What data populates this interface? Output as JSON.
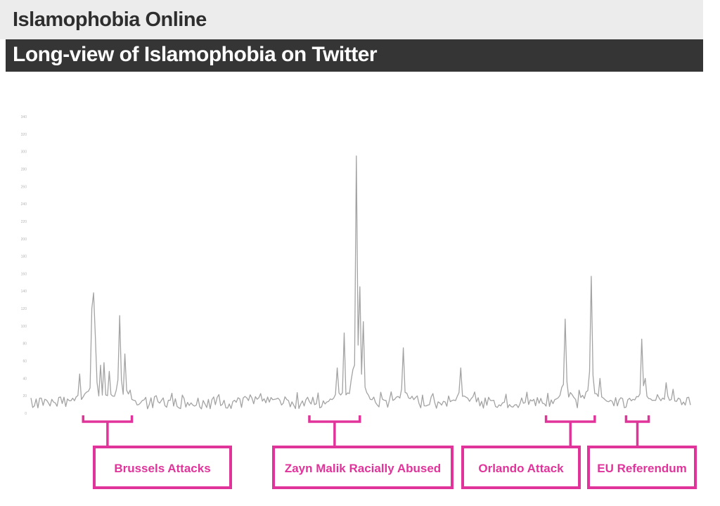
{
  "header": {
    "title": "Islamophobia Online",
    "subtitle": "Long-view of Islamophobia on Twitter"
  },
  "colors": {
    "series": "#a3a3a3",
    "annotation": "#e0349b",
    "banner_bg": "#353535",
    "title_text": "#2e2e2e"
  },
  "chart_data": {
    "type": "line",
    "title": "Long-view of Islamophobia on Twitter",
    "xlabel": "",
    "ylabel": "",
    "ylim": [
      0,
      340
    ],
    "yticks": [
      "0",
      "20",
      "40",
      "60",
      "80",
      "100",
      "120",
      "140",
      "160",
      "180",
      "200",
      "220",
      "240",
      "260",
      "280",
      "300",
      "320",
      "340"
    ],
    "grid": false,
    "x_count": 380,
    "baseline": 12,
    "peaks": [
      {
        "x": 35,
        "y": 120
      },
      {
        "x": 36,
        "y": 138
      },
      {
        "x": 37,
        "y": 88
      },
      {
        "x": 40,
        "y": 55
      },
      {
        "x": 42,
        "y": 58
      },
      {
        "x": 45,
        "y": 48
      },
      {
        "x": 51,
        "y": 112
      },
      {
        "x": 54,
        "y": 68
      },
      {
        "x": 28,
        "y": 45
      },
      {
        "x": 180,
        "y": 92
      },
      {
        "x": 176,
        "y": 52
      },
      {
        "x": 187,
        "y": 295
      },
      {
        "x": 189,
        "y": 145
      },
      {
        "x": 191,
        "y": 105
      },
      {
        "x": 214,
        "y": 75
      },
      {
        "x": 247,
        "y": 52
      },
      {
        "x": 307,
        "y": 108
      },
      {
        "x": 322,
        "y": 157
      },
      {
        "x": 327,
        "y": 40
      },
      {
        "x": 351,
        "y": 85
      },
      {
        "x": 353,
        "y": 40
      },
      {
        "x": 365,
        "y": 35
      }
    ],
    "annotations": [
      {
        "label": "Brussels Attacks",
        "x_start": 30,
        "x_end": 58
      },
      {
        "label": "Zayn Malik Racially Abused",
        "x_start": 160,
        "x_end": 189
      },
      {
        "label": "Orlando Attack",
        "x_start": 296,
        "x_end": 324
      },
      {
        "label": "EU Referendum",
        "x_start": 342,
        "x_end": 355
      }
    ]
  }
}
